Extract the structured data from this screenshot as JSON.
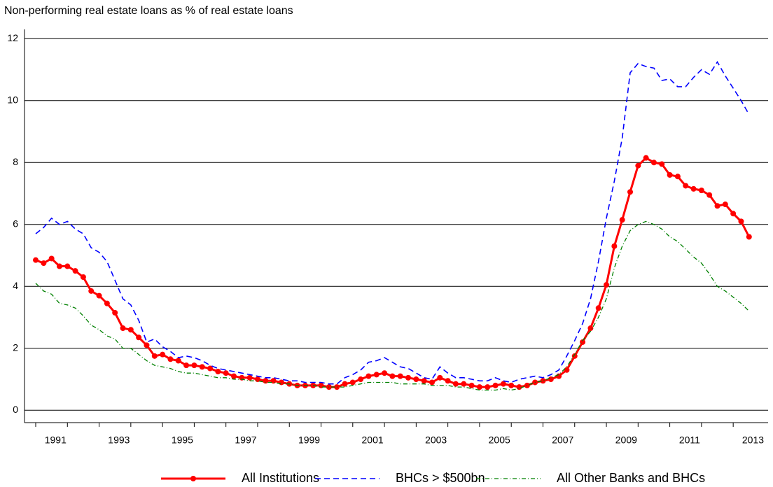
{
  "chart_data": {
    "type": "line",
    "title": "Non-performing real estate loans as % of real estate loans",
    "categories": [
      null,
      null,
      "1991",
      null,
      null,
      null,
      null,
      null,
      null,
      null,
      "1993",
      null,
      null,
      null,
      null,
      null,
      null,
      null,
      "1995",
      null,
      null,
      null,
      null,
      null,
      null,
      null,
      "1997",
      null,
      null,
      null,
      null,
      null,
      null,
      null,
      "1999",
      null,
      null,
      null,
      null,
      null,
      null,
      null,
      "2001",
      null,
      null,
      null,
      null,
      null,
      null,
      null,
      "2003",
      null,
      null,
      null,
      null,
      null,
      null,
      null,
      "2005",
      null,
      null,
      null,
      null,
      null,
      null,
      null,
      "2007",
      null,
      null,
      null,
      null,
      null,
      null,
      null,
      "2009",
      null,
      null,
      null,
      null,
      null,
      null,
      null,
      "2011",
      null,
      null,
      null,
      null,
      null,
      null,
      null,
      "2013"
    ],
    "series": [
      {
        "name": "All Institutions",
        "color": "#ff0000",
        "style": "solid-markers",
        "values": [
          4.85,
          4.75,
          4.9,
          4.65,
          4.65,
          4.5,
          4.3,
          3.85,
          3.7,
          3.45,
          3.15,
          2.65,
          2.6,
          2.35,
          2.1,
          1.75,
          1.8,
          1.65,
          1.6,
          1.45,
          1.45,
          1.4,
          1.35,
          1.25,
          1.2,
          1.1,
          1.05,
          1.05,
          1.0,
          0.95,
          0.95,
          0.9,
          0.85,
          0.8,
          0.8,
          0.8,
          0.8,
          0.75,
          0.75,
          0.85,
          0.9,
          1.0,
          1.1,
          1.15,
          1.2,
          1.1,
          1.1,
          1.05,
          1.0,
          0.95,
          0.9,
          1.05,
          0.95,
          0.85,
          0.85,
          0.8,
          0.75,
          0.75,
          0.8,
          0.85,
          0.8,
          0.75,
          0.8,
          0.9,
          0.95,
          1.0,
          1.1,
          1.3,
          1.75,
          2.2,
          2.65,
          3.3,
          4.05,
          5.3,
          6.15,
          7.05,
          7.9,
          8.15,
          8.0,
          7.95,
          7.6,
          7.55,
          7.25,
          7.15,
          7.1,
          6.95,
          6.6,
          6.65,
          6.35,
          6.1,
          5.6
        ]
      },
      {
        "name": "BHCs > $500bn",
        "color": "#0000ff",
        "style": "dashed",
        "values": [
          5.7,
          5.9,
          6.2,
          6.0,
          6.1,
          5.85,
          5.7,
          5.25,
          5.1,
          4.8,
          4.2,
          3.6,
          3.4,
          2.9,
          2.2,
          2.3,
          2.05,
          1.9,
          1.7,
          1.75,
          1.7,
          1.6,
          1.45,
          1.35,
          1.3,
          1.25,
          1.2,
          1.15,
          1.1,
          1.05,
          1.05,
          1.0,
          0.95,
          0.95,
          0.9,
          0.9,
          0.9,
          0.85,
          0.85,
          1.05,
          1.15,
          1.3,
          1.55,
          1.6,
          1.7,
          1.55,
          1.4,
          1.35,
          1.2,
          1.05,
          1.0,
          1.4,
          1.2,
          1.05,
          1.05,
          1.0,
          0.95,
          0.95,
          1.05,
          0.95,
          0.9,
          1.0,
          1.05,
          1.1,
          1.05,
          1.15,
          1.3,
          1.75,
          2.25,
          2.8,
          3.6,
          4.8,
          6.2,
          7.4,
          8.8,
          10.9,
          11.2,
          11.1,
          11.05,
          10.65,
          10.7,
          10.45,
          10.45,
          10.75,
          11.0,
          10.85,
          11.25,
          10.8,
          10.4,
          10.0,
          9.55
        ]
      },
      {
        "name": "All Other Banks and BHCs",
        "color": "#008000",
        "style": "dashdot",
        "values": [
          4.1,
          3.85,
          3.75,
          3.45,
          3.4,
          3.3,
          3.05,
          2.75,
          2.6,
          2.4,
          2.3,
          2.0,
          2.0,
          1.8,
          1.6,
          1.45,
          1.4,
          1.35,
          1.25,
          1.2,
          1.2,
          1.15,
          1.1,
          1.05,
          1.05,
          1.0,
          1.0,
          0.95,
          0.95,
          0.9,
          0.9,
          0.85,
          0.85,
          0.8,
          0.8,
          0.8,
          0.75,
          0.75,
          0.75,
          0.75,
          0.8,
          0.85,
          0.9,
          0.9,
          0.9,
          0.9,
          0.85,
          0.85,
          0.85,
          0.85,
          0.8,
          0.8,
          0.8,
          0.75,
          0.75,
          0.7,
          0.65,
          0.65,
          0.65,
          0.7,
          0.65,
          0.7,
          0.8,
          0.9,
          0.95,
          1.05,
          1.15,
          1.4,
          1.8,
          2.25,
          2.55,
          3.0,
          3.6,
          4.6,
          5.3,
          5.8,
          6.0,
          6.1,
          6.0,
          5.85,
          5.6,
          5.45,
          5.2,
          4.95,
          4.75,
          4.4,
          4.0,
          3.85,
          3.65,
          3.45,
          3.2
        ]
      }
    ],
    "ylim": [
      -0.4,
      12.3
    ],
    "yticks": [
      0,
      2,
      4,
      6,
      8,
      10,
      12
    ],
    "grid": true,
    "legend": "bottom"
  }
}
